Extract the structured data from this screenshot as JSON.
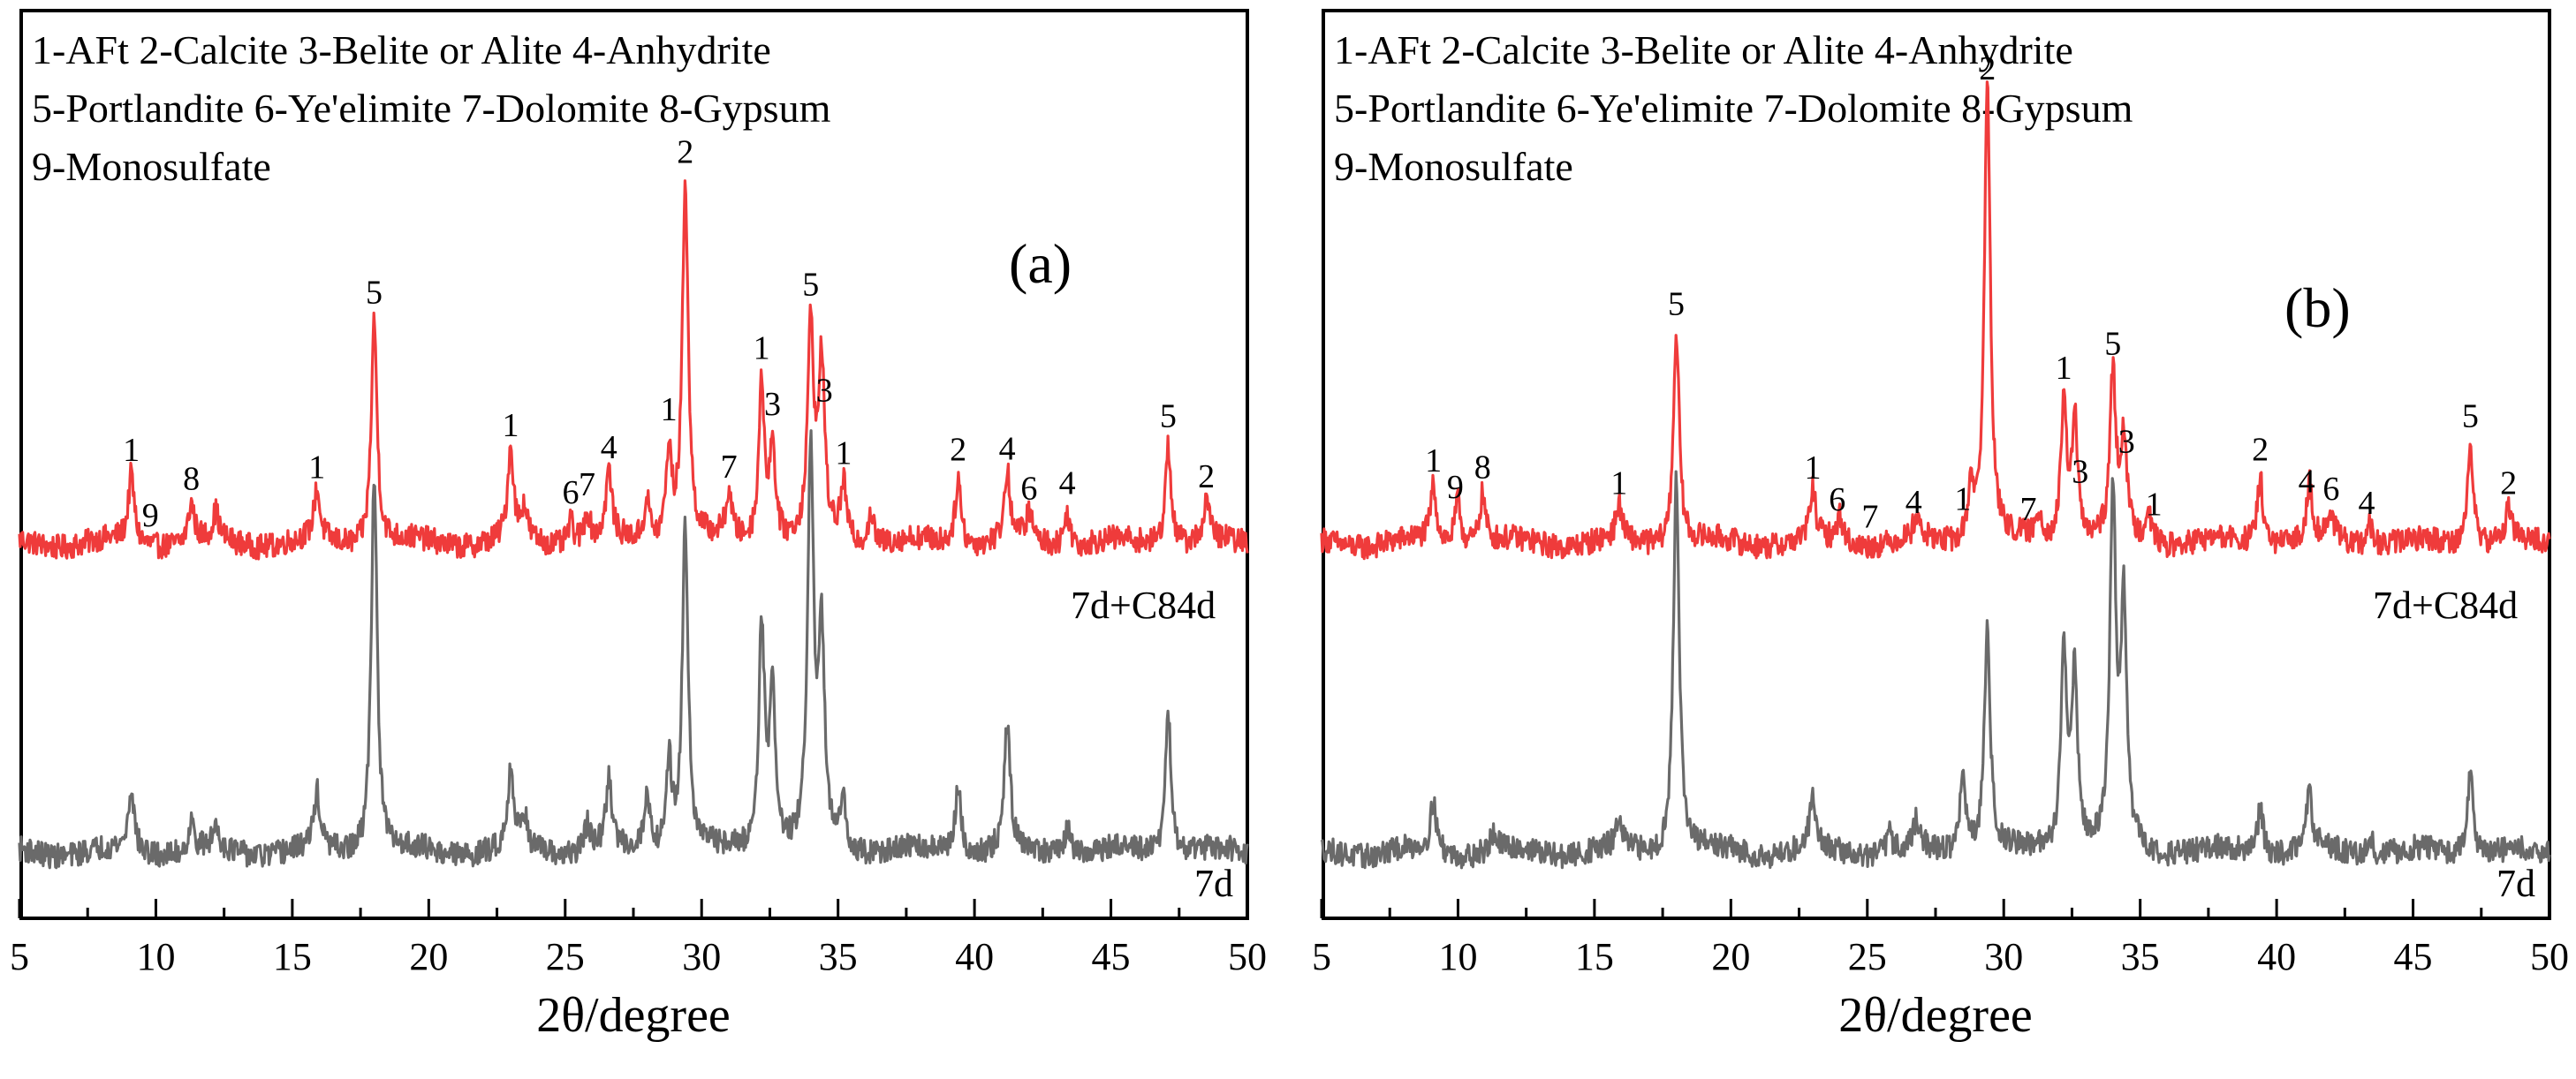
{
  "colors": {
    "treated": "#ef3b3b",
    "control": "#6a6a6a",
    "axis": "#000000"
  },
  "legend_text": [
    "1-AFt 2-Calcite 3-Belite or Alite 4-Anhydrite",
    "5-Portlandite 6-Ye'elimite 7-Dolomite 8-Gypsum",
    "9-Monosulfate"
  ],
  "chart_data": [
    {
      "type": "line",
      "panel_label": "(a)",
      "xlabel": "2θ/degree",
      "ylabel": "",
      "xlim": [
        5,
        50
      ],
      "xticks": [
        "5",
        "10",
        "15",
        "20",
        "25",
        "30",
        "35",
        "40",
        "45",
        "50"
      ],
      "legend_text": [
        "1-AFt 2-Calcite 3-Belite or Alite 4-Anhydrite",
        "5-Portlandite 6-Ye'elimite 7-Dolomite 8-Gypsum",
        "9-Monosulfate"
      ],
      "series": [
        {
          "name": "7d+C84d",
          "color": "#ef3b3b",
          "peaks": [
            [
              9.1,
              0.3
            ],
            [
              11.3,
              0.17
            ],
            [
              12.2,
              0.12
            ],
            [
              15.9,
              0.22
            ],
            [
              18.0,
              1.0
            ],
            [
              23.0,
              0.4
            ],
            [
              23.5,
              0.14
            ],
            [
              25.2,
              0.1
            ],
            [
              25.8,
              0.13
            ],
            [
              26.6,
              0.3
            ],
            [
              28.0,
              0.18
            ],
            [
              28.8,
              0.4
            ],
            [
              29.4,
              1.6
            ],
            [
              31.0,
              0.2
            ],
            [
              32.2,
              0.7
            ],
            [
              32.6,
              0.42
            ],
            [
              34.0,
              0.95
            ],
            [
              34.4,
              0.78
            ],
            [
              35.2,
              0.25
            ],
            [
              36.2,
              0.14
            ],
            [
              39.4,
              0.3
            ],
            [
              41.2,
              0.3
            ],
            [
              42.0,
              0.12
            ],
            [
              43.4,
              0.15
            ],
            [
              47.1,
              0.45
            ],
            [
              48.5,
              0.18
            ]
          ],
          "peak_labels": [
            [
              9.1,
              "1"
            ],
            [
              9.8,
              "9"
            ],
            [
              11.3,
              "8"
            ],
            [
              15.9,
              "1"
            ],
            [
              18.0,
              "5"
            ],
            [
              23.0,
              "1"
            ],
            [
              25.2,
              "6"
            ],
            [
              25.8,
              "7"
            ],
            [
              26.6,
              "4"
            ],
            [
              28.8,
              "1"
            ],
            [
              29.4,
              "2"
            ],
            [
              31.0,
              "7"
            ],
            [
              32.2,
              "1"
            ],
            [
              32.6,
              "3"
            ],
            [
              34.0,
              "5"
            ],
            [
              34.5,
              "3"
            ],
            [
              35.2,
              "1"
            ],
            [
              39.4,
              "2"
            ],
            [
              41.2,
              "4"
            ],
            [
              42.0,
              "6"
            ],
            [
              43.4,
              "4"
            ],
            [
              47.1,
              "5"
            ],
            [
              48.5,
              "2"
            ]
          ]
        },
        {
          "name": "7d",
          "color": "#6a6a6a",
          "peaks": [
            [
              9.1,
              0.28
            ],
            [
              11.3,
              0.12
            ],
            [
              12.2,
              0.1
            ],
            [
              15.9,
              0.25
            ],
            [
              18.0,
              1.7
            ],
            [
              23.0,
              0.35
            ],
            [
              23.5,
              0.15
            ],
            [
              25.8,
              0.12
            ],
            [
              26.6,
              0.3
            ],
            [
              28.0,
              0.25
            ],
            [
              28.8,
              0.4
            ],
            [
              29.4,
              1.45
            ],
            [
              32.2,
              1.0
            ],
            [
              32.6,
              0.7
            ],
            [
              34.0,
              1.75
            ],
            [
              34.4,
              0.9
            ],
            [
              35.2,
              0.2
            ],
            [
              39.4,
              0.3
            ],
            [
              41.2,
              0.55
            ],
            [
              43.4,
              0.12
            ],
            [
              47.1,
              0.62
            ]
          ]
        }
      ]
    },
    {
      "type": "line",
      "panel_label": "(b)",
      "xlabel": "2θ/degree",
      "ylabel": "",
      "xlim": [
        5,
        50
      ],
      "xticks": [
        "5",
        "10",
        "15",
        "20",
        "25",
        "30",
        "35",
        "40",
        "45",
        "50"
      ],
      "legend_text": [
        "1-AFt 2-Calcite 3-Belite or Alite 4-Anhydrite",
        "5-Portlandite 6-Ye'elimite 7-Dolomite 8-Gypsum",
        "9-Monosulfate"
      ],
      "series": [
        {
          "name": "7d+C84d",
          "color": "#ef3b3b",
          "peaks": [
            [
              9.1,
              0.25
            ],
            [
              10.0,
              0.2
            ],
            [
              10.9,
              0.22
            ],
            [
              15.9,
              0.15
            ],
            [
              18.0,
              0.95
            ],
            [
              23.0,
              0.22
            ],
            [
              24.0,
              0.12
            ],
            [
              26.8,
              0.1
            ],
            [
              28.8,
              0.25
            ],
            [
              29.4,
              2.05
            ],
            [
              31.3,
              0.12
            ],
            [
              32.2,
              0.6
            ],
            [
              32.6,
              0.55
            ],
            [
              34.0,
              0.72
            ],
            [
              34.4,
              0.45
            ],
            [
              35.3,
              0.15
            ],
            [
              39.4,
              0.3
            ],
            [
              41.2,
              0.25
            ],
            [
              42.0,
              0.12
            ],
            [
              43.4,
              0.1
            ],
            [
              47.1,
              0.45
            ],
            [
              48.5,
              0.15
            ]
          ],
          "peak_labels": [
            [
              9.1,
              "1"
            ],
            [
              9.9,
              "9"
            ],
            [
              10.9,
              "8"
            ],
            [
              15.9,
              "1"
            ],
            [
              18.0,
              "5"
            ],
            [
              23.0,
              "1"
            ],
            [
              23.9,
              "6"
            ],
            [
              25.1,
              "7"
            ],
            [
              26.7,
              "4"
            ],
            [
              28.5,
              "1"
            ],
            [
              29.4,
              "2"
            ],
            [
              30.9,
              "7"
            ],
            [
              32.2,
              "1"
            ],
            [
              32.8,
              "3"
            ],
            [
              34.0,
              "5"
            ],
            [
              34.5,
              "3"
            ],
            [
              35.5,
              "1"
            ],
            [
              39.4,
              "2"
            ],
            [
              41.1,
              "4"
            ],
            [
              42.0,
              "6"
            ],
            [
              43.3,
              "4"
            ],
            [
              47.1,
              "5"
            ],
            [
              48.5,
              "2"
            ]
          ]
        },
        {
          "name": "7d",
          "color": "#6a6a6a",
          "peaks": [
            [
              9.1,
              0.22
            ],
            [
              11.3,
              0.08
            ],
            [
              15.9,
              0.12
            ],
            [
              18.0,
              1.7
            ],
            [
              23.0,
              0.25
            ],
            [
              25.8,
              0.08
            ],
            [
              26.8,
              0.12
            ],
            [
              28.5,
              0.35
            ],
            [
              29.4,
              1.0
            ],
            [
              32.2,
              0.9
            ],
            [
              32.6,
              0.8
            ],
            [
              34.0,
              1.55
            ],
            [
              34.4,
              1.05
            ],
            [
              39.4,
              0.2
            ],
            [
              41.2,
              0.25
            ],
            [
              43.4,
              0.1
            ],
            [
              47.1,
              0.35
            ]
          ]
        }
      ]
    }
  ]
}
